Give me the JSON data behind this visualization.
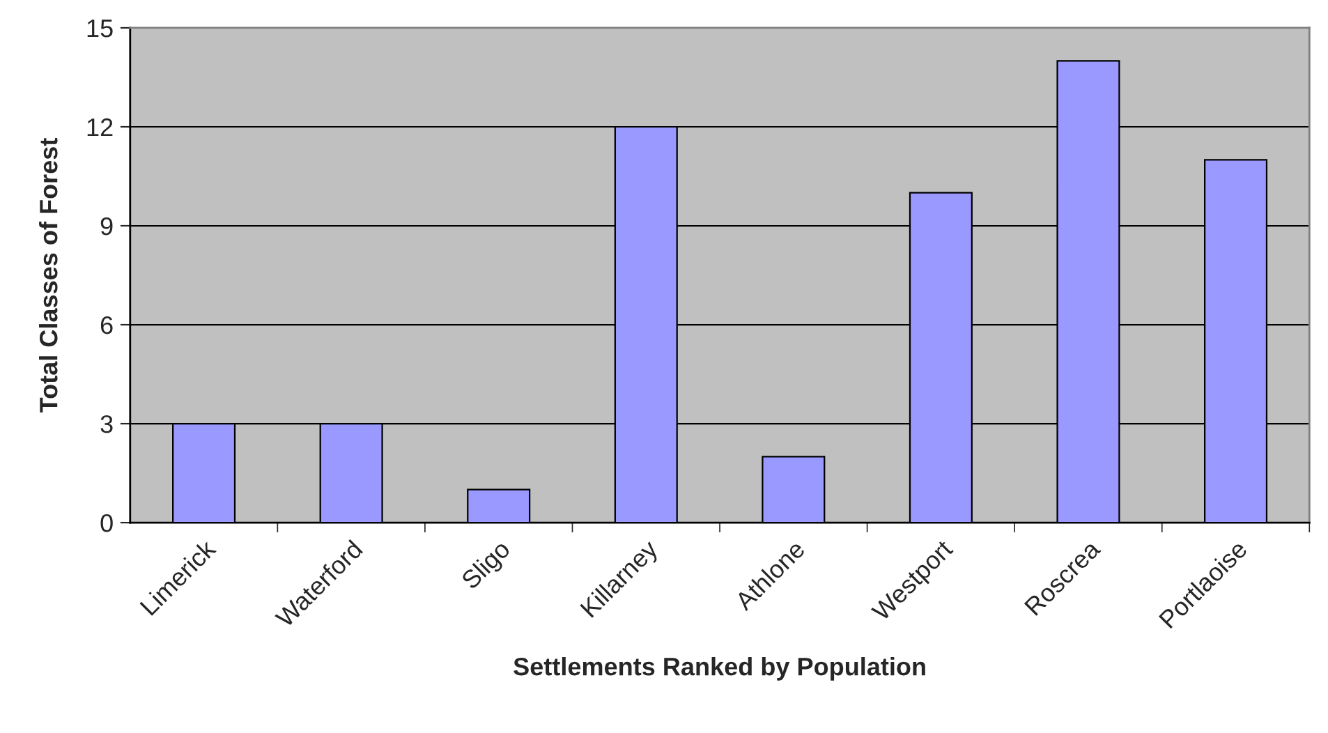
{
  "chart_data": {
    "type": "bar",
    "xlabel": "Settlements Ranked by Population",
    "ylabel": "Total Classes of Forest",
    "categories": [
      "Limerick",
      "Waterford",
      "Sligo",
      "Killarney",
      "Athlone",
      "Westport",
      "Roscrea",
      "Portlaoise"
    ],
    "values": [
      3,
      3,
      1,
      12,
      2,
      10,
      14,
      11
    ],
    "color": "#9999ff",
    "ylim": [
      0,
      15
    ],
    "yticks": [
      0,
      3,
      6,
      9,
      12,
      15
    ],
    "grid": "y"
  }
}
